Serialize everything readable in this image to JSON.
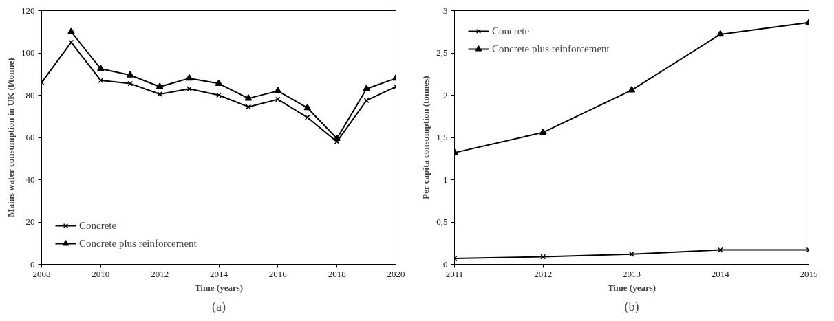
{
  "chart_data": [
    {
      "type": "line",
      "xlabel": "Time (years)",
      "ylabel": "Mains water consumption in UK (l/tonne)",
      "x": [
        2008,
        2009,
        2010,
        2011,
        2012,
        2013,
        2014,
        2015,
        2016,
        2017,
        2018,
        2019,
        2020
      ],
      "series": [
        {
          "name": "Concrete",
          "color": "#000000",
          "marker": "cross",
          "values": [
            86,
            105,
            87,
            85.5,
            80.5,
            83,
            80,
            74.5,
            78,
            69.5,
            58,
            77.5,
            84
          ]
        },
        {
          "name": "Concrete plus reinforcement",
          "color": "#000000",
          "marker": "triangle",
          "values": [
            null,
            110,
            92.5,
            89.5,
            84,
            88,
            85.5,
            78.5,
            82,
            74,
            59.5,
            83,
            88
          ]
        }
      ],
      "xlim": [
        2008,
        2020
      ],
      "xticks": [
        2008,
        2010,
        2012,
        2014,
        2016,
        2018,
        2020
      ],
      "ylim": [
        0,
        120
      ],
      "yticks": [
        0,
        20,
        40,
        60,
        80,
        100,
        120
      ],
      "legend": "bottom left",
      "annotations": [
        "(a)"
      ]
    },
    {
      "type": "line",
      "xlabel": "Time (years)",
      "ylabel": "Per capita consumption (tonnes)",
      "x": [
        2011,
        2012,
        2013,
        2014,
        2015
      ],
      "series": [
        {
          "name": "Concrete",
          "color": "#000000",
          "marker": "cross",
          "values": [
            0.07,
            0.09,
            0.12,
            0.17,
            0.17
          ]
        },
        {
          "name": "Concrete plus reinforcement",
          "color": "#000000",
          "marker": "triangle",
          "values": [
            1.32,
            1.56,
            2.06,
            2.72,
            2.86
          ]
        }
      ],
      "xlim": [
        2011,
        2015
      ],
      "xticks": [
        2011,
        2012,
        2013,
        2014,
        2015
      ],
      "ylim": [
        0,
        3
      ],
      "yticks": [
        0,
        {
          "value": 0.5,
          "label": "0,5"
        },
        1,
        {
          "value": 1.5,
          "label": "1,5"
        },
        2,
        {
          "value": 2.5,
          "label": "2,5"
        },
        3
      ],
      "legend": "top left",
      "annotations": [
        "(b)"
      ]
    }
  ]
}
